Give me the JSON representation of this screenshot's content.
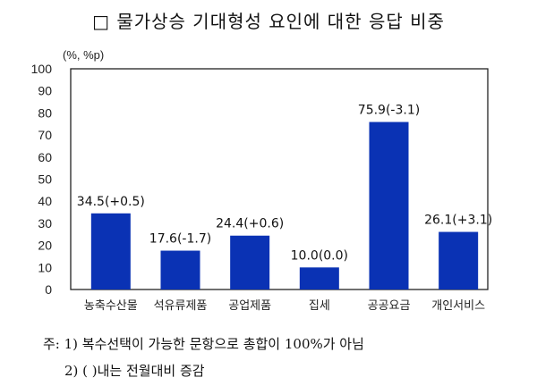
{
  "title": "□ 물가상승 기대형성 요인에 대한 응답 비중",
  "chart_data": {
    "type": "bar",
    "unit_label": "(%, %p)",
    "categories": [
      "농축수산물",
      "석유류제품",
      "공업제품",
      "집세",
      "공공요금",
      "개인서비스"
    ],
    "values": [
      34.5,
      17.6,
      24.4,
      10.0,
      75.9,
      26.1
    ],
    "changes": [
      0.5,
      -1.7,
      0.6,
      0.0,
      -3.1,
      3.1
    ],
    "data_labels": [
      "34.5(+0.5)",
      "17.6(-1.7)",
      "24.4(+0.6)",
      "10.0(0.0)",
      "75.9(-3.1)",
      "26.1(+3.1)"
    ],
    "ylim": [
      0,
      100
    ],
    "yticks": [
      0,
      10,
      20,
      30,
      40,
      50,
      60,
      70,
      80,
      90,
      100
    ],
    "grid": false,
    "bar_color": "#0a32b4"
  },
  "notes": {
    "line1": "주: 1) 복수선택이 가능한 문항으로 총합이 100%가 아님",
    "line2": "2) ( )내는 전월대비 증감"
  }
}
